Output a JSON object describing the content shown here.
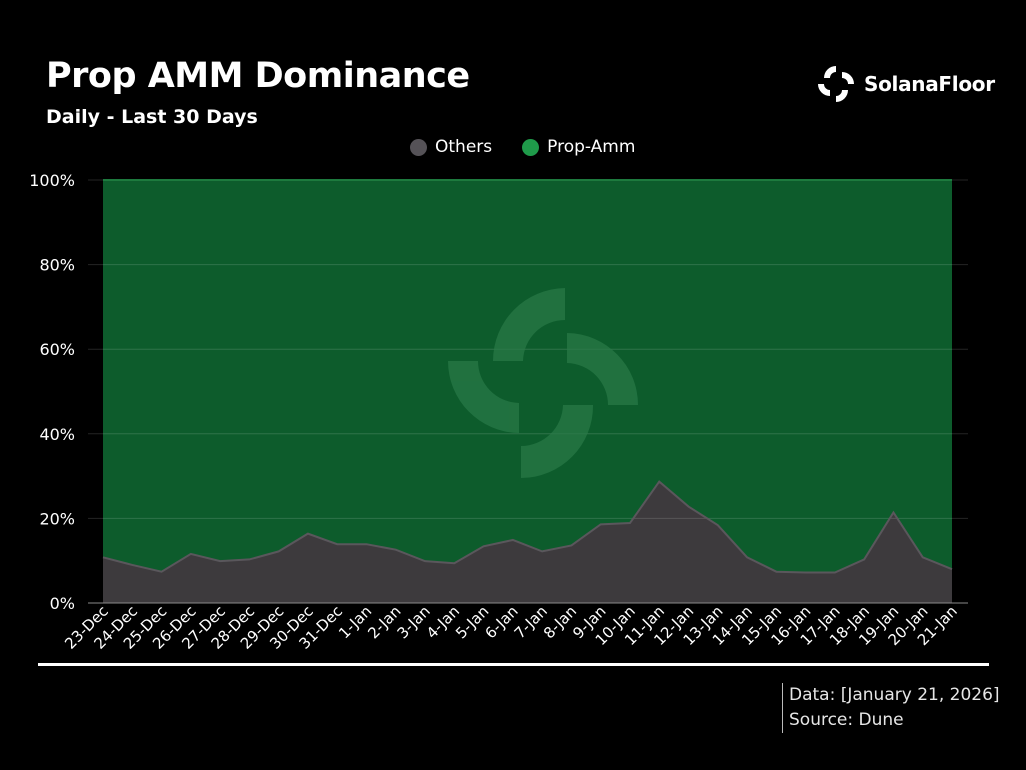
{
  "header": {
    "title": "Prop AMM Dominance",
    "subtitle": "Daily - Last 30 Days",
    "brand_name": "SolanaFloor",
    "brand_icon": "solanafloor-logo-icon"
  },
  "footer": {
    "data_label": "Data: [January 21, 2026]",
    "source_label": "Source: Dune"
  },
  "colors": {
    "background": "#000000",
    "others": "#3d3a3d",
    "prop_amm": "#0d5c2c",
    "prop_amm_legend": "#1f9a4a",
    "others_legend": "#555257",
    "watermark": "#2a7a48"
  },
  "chart_data": {
    "type": "area",
    "stacked": true,
    "normalized": true,
    "title": "Prop AMM Dominance",
    "subtitle": "Daily - Last 30 Days",
    "xlabel": "",
    "ylabel": "",
    "ylim": [
      0,
      100
    ],
    "y_ticks": [
      "0%",
      "20%",
      "40%",
      "60%",
      "80%",
      "100%"
    ],
    "grid": true,
    "legend_position": "top-center",
    "categories": [
      "23-Dec",
      "24-Dec",
      "25-Dec",
      "26-Dec",
      "27-Dec",
      "28-Dec",
      "29-Dec",
      "30-Dec",
      "31-Dec",
      "1-Jan",
      "2-Jan",
      "3-Jan",
      "4-Jan",
      "5-Jan",
      "6-Jan",
      "7-Jan",
      "8-Jan",
      "9-Jan",
      "10-Jan",
      "11-Jan",
      "12-Jan",
      "13-Jan",
      "14-Jan",
      "15-Jan",
      "16-Jan",
      "17-Jan",
      "18-Jan",
      "19-Jan",
      "20-Jan",
      "21-Jan"
    ],
    "series": [
      {
        "name": "Others",
        "values": [
          10.8,
          9.0,
          7.4,
          11.6,
          9.9,
          10.3,
          12.2,
          16.4,
          13.9,
          13.9,
          12.6,
          9.9,
          9.4,
          13.4,
          14.9,
          12.2,
          13.6,
          18.6,
          18.9,
          28.7,
          22.8,
          18.4,
          10.8,
          7.4,
          7.2,
          7.2,
          10.3,
          21.4,
          10.8,
          8.0
        ]
      },
      {
        "name": "Prop-Amm",
        "values": [
          89.2,
          91.0,
          92.6,
          88.4,
          90.1,
          89.7,
          87.8,
          83.6,
          86.1,
          86.1,
          87.4,
          90.1,
          90.6,
          86.6,
          85.1,
          87.8,
          86.4,
          81.4,
          81.1,
          71.3,
          77.2,
          81.6,
          89.2,
          92.6,
          92.8,
          92.8,
          89.7,
          78.6,
          89.2,
          92.0
        ]
      }
    ]
  }
}
